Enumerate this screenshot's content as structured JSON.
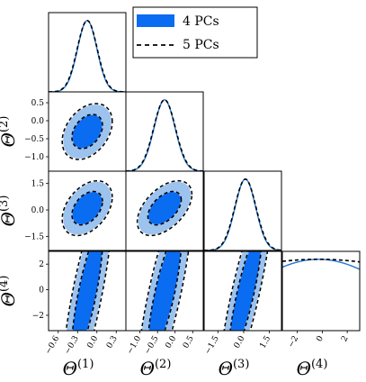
{
  "legend": {
    "placement": "top-right",
    "entries": [
      {
        "label": "4 PCs",
        "style": "filled-box",
        "color": "#0a6cf0"
      },
      {
        "label": "5 PCs",
        "style": "dashed-line",
        "color": "#000000"
      }
    ]
  },
  "colors": {
    "inner_fill": "#0a6cf0",
    "outer_fill": "#9cc2ee",
    "line_4pc": "#1f77d4",
    "line_5pc": "#000000"
  },
  "chart_data": {
    "type": "corner-triangle",
    "title": "",
    "parameters": [
      {
        "label": "Θ",
        "superscript": "(1)",
        "ticks": [
          -0.6,
          -0.3,
          0.0,
          0.3
        ],
        "tick_labels": [
          "−0.6",
          "−0.3",
          "0.0",
          "0.3"
        ],
        "range": [
          -0.75,
          0.45
        ]
      },
      {
        "label": "Θ",
        "superscript": "(2)",
        "ticks": [
          -1.0,
          -0.5,
          0.0,
          0.5
        ],
        "tick_labels": [
          "−1.0",
          "−0.5",
          "0.0",
          "0.5"
        ],
        "range": [
          -1.4,
          0.8
        ]
      },
      {
        "label": "Θ",
        "superscript": "(3)",
        "ticks": [
          -1.5,
          0.0,
          1.5
        ],
        "tick_labels": [
          "−1.5",
          "0.0",
          "1.5"
        ],
        "range": [
          -2.3,
          2.2
        ]
      },
      {
        "label": "Θ",
        "superscript": "(4)",
        "ticks": [
          -2,
          0,
          2
        ],
        "tick_labels": [
          "−2",
          "0",
          "2"
        ],
        "range": [
          -3.2,
          3.0
        ]
      }
    ],
    "means": [
      -0.15,
      -0.3,
      0.1,
      -0.3
    ],
    "sigmas": [
      0.15,
      0.3,
      0.6,
      6.0
    ],
    "correlations": [
      {
        "pair": [
          1,
          2
        ],
        "rho": 0.35
      },
      {
        "pair": [
          1,
          3
        ],
        "rho": 0.4
      },
      {
        "pair": [
          2,
          3
        ],
        "rho": 0.5
      },
      {
        "pair": [
          1,
          4
        ],
        "rho": 0.8
      },
      {
        "pair": [
          2,
          4
        ],
        "rho": 0.8
      },
      {
        "pair": [
          3,
          4
        ],
        "rho": 0.85
      }
    ],
    "series": [
      {
        "name": "4 PCs",
        "render": "filled 1σ/2σ contours and solid marginal",
        "theta4_sigma": 6.0
      },
      {
        "name": "5 PCs",
        "render": "dashed contours and dashed marginal",
        "theta4_sigma": 12.0
      }
    ],
    "contour_levels_sigma": [
      1.52,
      2.49
    ]
  }
}
